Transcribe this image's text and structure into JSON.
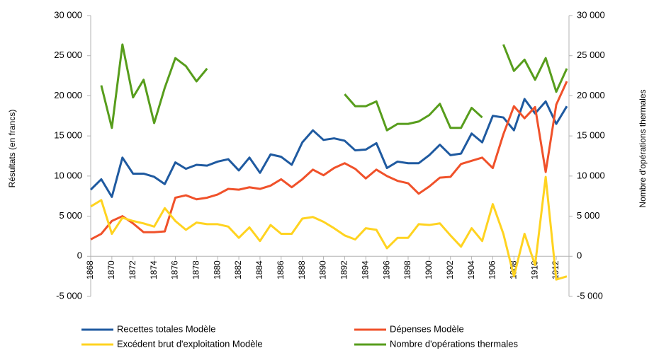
{
  "chart_data": {
    "type": "line",
    "y_label": "Résultats (en francs)",
    "y2_label": "Nombre d'opérations thermales",
    "x": [
      1868,
      1869,
      1870,
      1871,
      1872,
      1873,
      1874,
      1875,
      1876,
      1877,
      1878,
      1879,
      1880,
      1881,
      1882,
      1883,
      1884,
      1885,
      1886,
      1887,
      1888,
      1889,
      1890,
      1891,
      1892,
      1893,
      1894,
      1895,
      1896,
      1897,
      1898,
      1899,
      1900,
      1901,
      1902,
      1903,
      1904,
      1905,
      1906,
      1907,
      1908,
      1909,
      1910,
      1911,
      1912,
      1913
    ],
    "xlim": [
      1868,
      1913
    ],
    "xticks": [
      1868,
      1870,
      1872,
      1874,
      1876,
      1878,
      1880,
      1882,
      1884,
      1886,
      1888,
      1890,
      1892,
      1894,
      1896,
      1898,
      1900,
      1902,
      1904,
      1906,
      1908,
      1910,
      1912
    ],
    "ylim": [
      -5000,
      30000
    ],
    "yticks": [
      {
        "value": -5000,
        "label": "-5 000"
      },
      0,
      {
        "value": 5000,
        "label": "5 000"
      },
      {
        "value": 10000,
        "label": "10 000"
      },
      {
        "value": 15000,
        "label": "15 000"
      },
      {
        "value": 20000,
        "label": "20 000"
      },
      {
        "value": 25000,
        "label": "25 000"
      },
      {
        "value": 30000,
        "label": "30 000"
      }
    ],
    "y2lim": [
      -5000,
      30000
    ],
    "y2ticks": [
      {
        "value": -5000,
        "label": "-5 000"
      },
      0,
      {
        "value": 5000,
        "label": "5 000"
      },
      {
        "value": 10000,
        "label": "10 000"
      },
      {
        "value": 15000,
        "label": "15 000"
      },
      {
        "value": 20000,
        "label": "20 000"
      },
      {
        "value": 25000,
        "label": "25 000"
      },
      {
        "value": 30000,
        "label": "30 000"
      }
    ],
    "series": [
      {
        "name": "Recettes totales Modèle",
        "color": "#1f5aa0",
        "values": [
          8300,
          9600,
          7400,
          12300,
          10300,
          10300,
          9900,
          9000,
          11700,
          10900,
          11400,
          11300,
          11800,
          12100,
          10700,
          12300,
          10400,
          12700,
          12400,
          11400,
          14200,
          15700,
          14500,
          14700,
          14400,
          13200,
          13300,
          14100,
          11000,
          11800,
          11600,
          11600,
          12600,
          13900,
          12600,
          12800,
          15300,
          14200,
          17500,
          17300,
          15700,
          19600,
          17800,
          19300,
          16500,
          18700
        ]
      },
      {
        "name": "Dépenses Modèle",
        "color": "#f0512a",
        "values": [
          2100,
          2800,
          4400,
          5000,
          4100,
          3000,
          3000,
          3100,
          7300,
          7600,
          7100,
          7300,
          7700,
          8400,
          8300,
          8600,
          8400,
          8800,
          9600,
          8600,
          9600,
          10800,
          10100,
          11000,
          11600,
          10900,
          9700,
          10800,
          10000,
          9400,
          9100,
          7800,
          8700,
          9800,
          9900,
          11500,
          11900,
          12300,
          11000,
          15200,
          18700,
          17200,
          18600,
          10500,
          18900,
          21800
        ]
      },
      {
        "name": "Excédent brut d'exploitation Modèle",
        "color": "#ffd320",
        "values": [
          6200,
          7000,
          2800,
          4800,
          4400,
          4100,
          3700,
          6000,
          4400,
          3300,
          4200,
          4000,
          4000,
          3700,
          2300,
          3600,
          1900,
          3900,
          2800,
          2800,
          4700,
          4900,
          4300,
          3500,
          2600,
          2100,
          3500,
          3300,
          1000,
          2300,
          2300,
          4000,
          3900,
          4100,
          2600,
          1200,
          3500,
          1900,
          6500,
          2800,
          -2500,
          2800,
          -1100,
          9900,
          -2900,
          -2500
        ]
      },
      {
        "name": "Nombre d'opérations thermales",
        "color": "#579d1c",
        "axis": "y2",
        "values": [
          null,
          21300,
          16000,
          26400,
          19800,
          22000,
          16600,
          21000,
          24700,
          23700,
          21800,
          23400,
          null,
          null,
          null,
          null,
          null,
          null,
          null,
          null,
          null,
          null,
          null,
          null,
          20200,
          18700,
          18700,
          19300,
          15700,
          16500,
          16500,
          16800,
          17600,
          19000,
          16000,
          16000,
          18500,
          17300,
          null,
          26400,
          23100,
          24500,
          22000,
          24700,
          20500,
          23400
        ]
      }
    ]
  }
}
